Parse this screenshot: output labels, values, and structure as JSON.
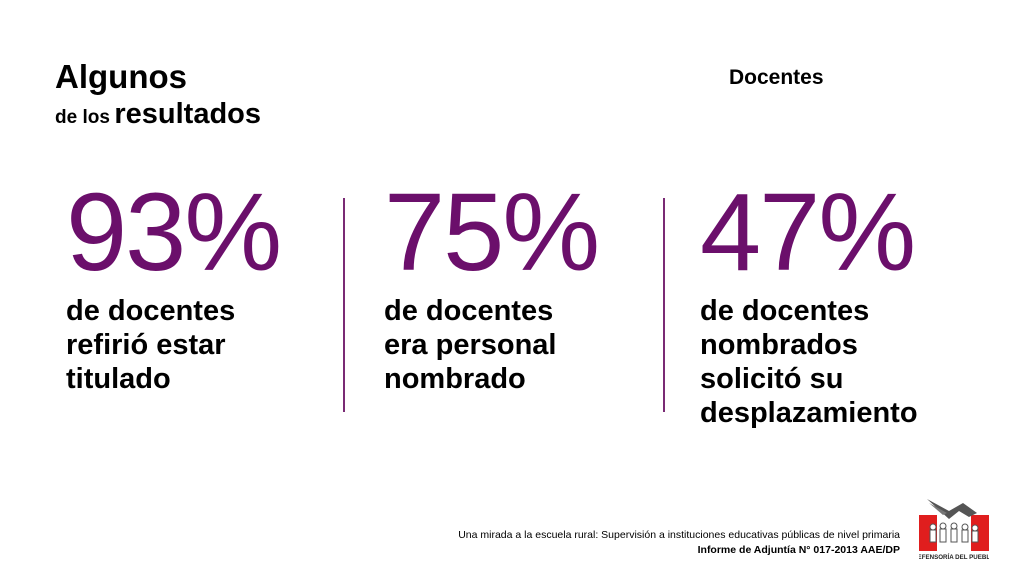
{
  "colors": {
    "accent": "#6b0f6b",
    "divider": "#7a2a74",
    "logo_red": "#e01e1e"
  },
  "header": {
    "title_line1": "Algunos",
    "title_line2_prefix": "de los",
    "title_line2_main": "resultados",
    "category": "Docentes"
  },
  "stats": [
    {
      "value": "93%",
      "desc": [
        "de docentes",
        "refirió estar",
        "titulado"
      ]
    },
    {
      "value": "75%",
      "desc": [
        "de docentes",
        "era personal",
        "nombrado"
      ]
    },
    {
      "value": "47%",
      "desc": [
        "de docentes",
        "nombrados",
        "solicitó su",
        "desplazamiento"
      ]
    }
  ],
  "footer": {
    "line1": "Una mirada a la escuela rural: Supervisión a instituciones educativas públicas de nivel primaria",
    "line2": "Informe de Adjuntía N° 017-2013 AAE/DP"
  },
  "logo": {
    "icon": "defensoria-logo-icon",
    "text": "DEFENSORÍA DEL PUEBLO"
  }
}
